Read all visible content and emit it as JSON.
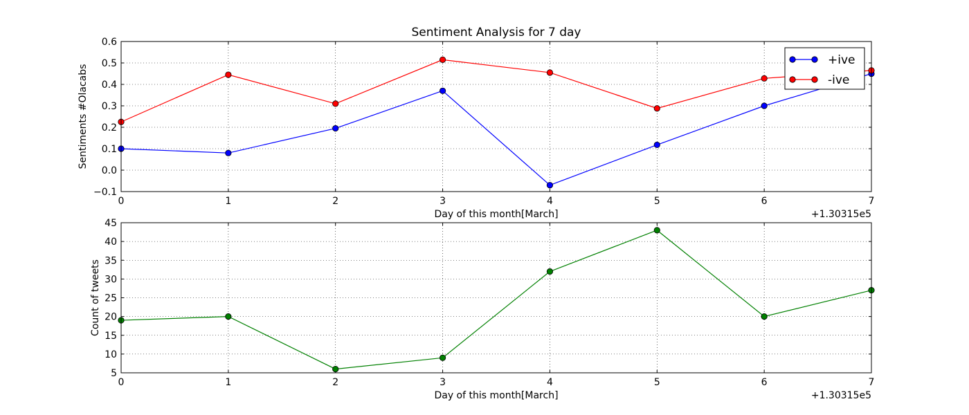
{
  "chart_data": [
    {
      "type": "line",
      "title": "Sentiment Analysis for 7 day",
      "xlabel": "Day of this month[March]",
      "ylabel": "Sentiments #Olacabs",
      "x_offset_label": "+1.30315e5",
      "x": [
        0,
        1,
        2,
        3,
        4,
        5,
        6,
        7
      ],
      "xlim": [
        0,
        7
      ],
      "ylim": [
        -0.1,
        0.6
      ],
      "xticks": [
        "0",
        "1",
        "2",
        "3",
        "4",
        "5",
        "6",
        "7"
      ],
      "yticks": [
        "−0.1",
        "0.0",
        "0.1",
        "0.2",
        "0.3",
        "0.4",
        "0.5",
        "0.6"
      ],
      "grid": true,
      "legend": "top-right",
      "series": [
        {
          "name": "+ive",
          "color": "#0000ff",
          "values": [
            0.1,
            0.08,
            0.195,
            0.37,
            -0.07,
            0.118,
            0.3,
            0.45
          ]
        },
        {
          "name": "-ive",
          "color": "#ff0000",
          "values": [
            0.225,
            0.445,
            0.31,
            0.515,
            0.455,
            0.288,
            0.428,
            0.465
          ]
        }
      ]
    },
    {
      "type": "line",
      "title": "",
      "xlabel": "Day of this month[March]",
      "ylabel": "Count of tweets",
      "x_offset_label": "+1.30315e5",
      "x": [
        0,
        1,
        2,
        3,
        4,
        5,
        6,
        7
      ],
      "xlim": [
        0,
        7
      ],
      "ylim": [
        5,
        45
      ],
      "xticks": [
        "0",
        "1",
        "2",
        "3",
        "4",
        "5",
        "6",
        "7"
      ],
      "yticks": [
        "5",
        "10",
        "15",
        "20",
        "25",
        "30",
        "35",
        "40",
        "45"
      ],
      "grid": true,
      "legend": "none",
      "series": [
        {
          "color": "#008000",
          "values": [
            19,
            20,
            6,
            9,
            32,
            43,
            20,
            27
          ]
        }
      ]
    }
  ]
}
